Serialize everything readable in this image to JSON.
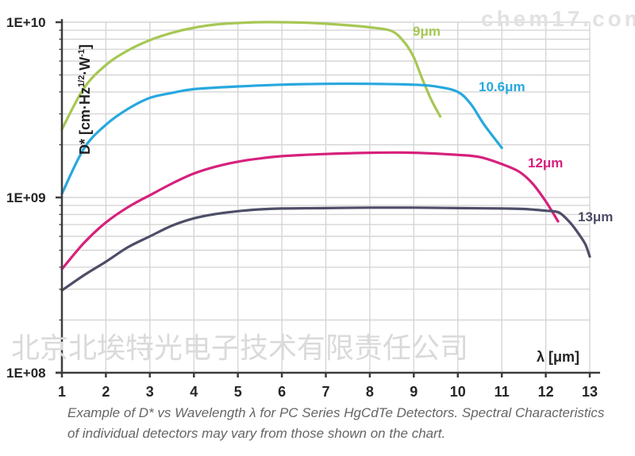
{
  "watermarks": {
    "top_right": "chem17.com",
    "center": "北京北埃特光电子技术有限责任公司"
  },
  "caption": {
    "line1": "Example of D* vs Wavelength λ for PC Series HgCdTe Detectors. Spectral Characteristics",
    "line2": "of individual detectors may vary from those shown on the chart."
  },
  "chart_data": {
    "type": "line",
    "title": "",
    "xlabel": "λ [μm]",
    "ylabel": "D* [cm·Hz1/2·W-1]",
    "ylabel_parts": {
      "pre": "D* [cm·Hz",
      "sup1": "1/2",
      "mid": "·W",
      "sup2": "-1",
      "post": "]"
    },
    "x_axis": {
      "min": 1,
      "max": 13,
      "ticks": [
        1,
        2,
        3,
        4,
        5,
        6,
        7,
        8,
        9,
        10,
        11,
        12,
        13
      ]
    },
    "y_axis": {
      "scale": "log",
      "min": 100000000.0,
      "max": 10000000000.0,
      "tick_values": [
        100000000.0,
        1000000000.0,
        10000000000.0
      ],
      "tick_labels": [
        "1E+08",
        "1E+09",
        "1E+10"
      ]
    },
    "grid": {
      "vertical_at": [
        2,
        3,
        4,
        5,
        6,
        7,
        8,
        9,
        10,
        11,
        12,
        13
      ],
      "horizontal_minor": true
    },
    "colors": {
      "grid": "#d6d6d6",
      "axis": "#3d3d3d",
      "text": "#262626"
    },
    "series": [
      {
        "name": "9μm",
        "color": "#a6c754",
        "points": [
          [
            1,
            2450000000.0
          ],
          [
            1.5,
            4200000000.0
          ],
          [
            2,
            5700000000.0
          ],
          [
            2.5,
            6900000000.0
          ],
          [
            3,
            7900000000.0
          ],
          [
            3.5,
            8700000000.0
          ],
          [
            4,
            9300000000.0
          ],
          [
            4.5,
            9700000000.0
          ],
          [
            5,
            9900000000.0
          ],
          [
            5.5,
            10000000000.0
          ],
          [
            6,
            10000000000.0
          ],
          [
            6.5,
            9950000000.0
          ],
          [
            7,
            9800000000.0
          ],
          [
            7.5,
            9600000000.0
          ],
          [
            8,
            9350000000.0
          ],
          [
            8.5,
            8900000000.0
          ],
          [
            8.8,
            7600000000.0
          ],
          [
            9,
            6300000000.0
          ],
          [
            9.2,
            4700000000.0
          ],
          [
            9.4,
            3600000000.0
          ],
          [
            9.6,
            2900000000.0
          ]
        ]
      },
      {
        "name": "10.6μm",
        "color": "#27a8de",
        "points": [
          [
            1,
            1050000000.0
          ],
          [
            1.5,
            1900000000.0
          ],
          [
            2,
            2600000000.0
          ],
          [
            2.5,
            3200000000.0
          ],
          [
            3,
            3700000000.0
          ],
          [
            3.5,
            3950000000.0
          ],
          [
            4,
            4150000000.0
          ],
          [
            5,
            4300000000.0
          ],
          [
            6,
            4400000000.0
          ],
          [
            7,
            4450000000.0
          ],
          [
            8,
            4450000000.0
          ],
          [
            9,
            4400000000.0
          ],
          [
            9.5,
            4300000000.0
          ],
          [
            10,
            4000000000.0
          ],
          [
            10.3,
            3400000000.0
          ],
          [
            10.6,
            2600000000.0
          ],
          [
            11,
            1920000000.0
          ]
        ]
      },
      {
        "name": "12μm",
        "color": "#d6217c",
        "points": [
          [
            1,
            390000000.0
          ],
          [
            1.5,
            550000000.0
          ],
          [
            2,
            720000000.0
          ],
          [
            2.5,
            880000000.0
          ],
          [
            3,
            1030000000.0
          ],
          [
            3.5,
            1200000000.0
          ],
          [
            4,
            1370000000.0
          ],
          [
            4.5,
            1500000000.0
          ],
          [
            5,
            1600000000.0
          ],
          [
            5.5,
            1670000000.0
          ],
          [
            6,
            1720000000.0
          ],
          [
            7,
            1770000000.0
          ],
          [
            8,
            1800000000.0
          ],
          [
            9,
            1800000000.0
          ],
          [
            10,
            1750000000.0
          ],
          [
            10.5,
            1700000000.0
          ],
          [
            11,
            1550000000.0
          ],
          [
            11.4,
            1400000000.0
          ],
          [
            11.7,
            1200000000.0
          ],
          [
            12,
            950000000.0
          ],
          [
            12.28,
            730000000.0
          ]
        ]
      },
      {
        "name": "13μm",
        "color": "#4e4e68",
        "points": [
          [
            1,
            295000000.0
          ],
          [
            1.5,
            360000000.0
          ],
          [
            2,
            430000000.0
          ],
          [
            2.5,
            520000000.0
          ],
          [
            3,
            600000000.0
          ],
          [
            3.5,
            690000000.0
          ],
          [
            4,
            760000000.0
          ],
          [
            4.5,
            805000000.0
          ],
          [
            5,
            835000000.0
          ],
          [
            5.5,
            855000000.0
          ],
          [
            6,
            865000000.0
          ],
          [
            7,
            870000000.0
          ],
          [
            8,
            875000000.0
          ],
          [
            9,
            875000000.0
          ],
          [
            10,
            870000000.0
          ],
          [
            11,
            865000000.0
          ],
          [
            11.5,
            860000000.0
          ],
          [
            12,
            840000000.0
          ],
          [
            12.3,
            820000000.0
          ],
          [
            12.55,
            720000000.0
          ],
          [
            12.75,
            620000000.0
          ],
          [
            12.9,
            540000000.0
          ],
          [
            13,
            460000000.0
          ]
        ]
      }
    ]
  }
}
